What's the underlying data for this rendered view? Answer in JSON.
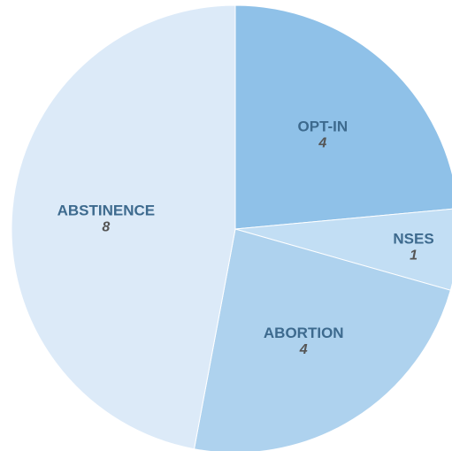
{
  "chart_data": {
    "type": "pie",
    "start": "top",
    "direction": "clockwise",
    "slices": [
      {
        "label": "OPT-IN",
        "value": 4,
        "value_text": "4",
        "color": "#8fc1e8"
      },
      {
        "label": "NSES",
        "value": 1,
        "value_text": "1",
        "color": "#c2def4"
      },
      {
        "label": "ABORTION",
        "value": 4,
        "value_text": "4",
        "color": "#aed2ee"
      },
      {
        "label": "ABSTINENCE",
        "value": 8,
        "value_text": "8",
        "color": "#dceaf8"
      }
    ]
  }
}
